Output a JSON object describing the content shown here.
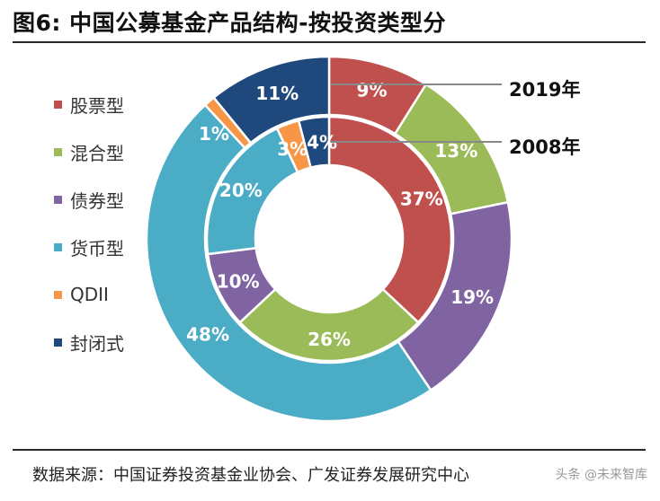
{
  "figure": {
    "title": "图6:  中国公募基金产品结构-按投资类型分",
    "source": "数据来源：中国证券投资基金业协会、广发证券发展研究中心",
    "watermark": "头条 @未来智库"
  },
  "colors": {
    "stock": "#c0504d",
    "mixed": "#9bbb59",
    "bond": "#8064a2",
    "money": "#4bacc6",
    "qdii": "#f79646",
    "closed": "#1f497d"
  },
  "chart_data": {
    "type": "donut",
    "title": "中国公募基金产品结构-按投资类型分",
    "categories": [
      "股票型",
      "混合型",
      "债券型",
      "货币型",
      "QDII",
      "封闭式"
    ],
    "series": [
      {
        "name": "2019年",
        "ring": "outer",
        "values": [
          9,
          13,
          19,
          48,
          1,
          11
        ],
        "labels": [
          "9%",
          "13%",
          "19%",
          "48%",
          "",
          "11%"
        ],
        "outside_label": "1%"
      },
      {
        "name": "2008年",
        "ring": "inner",
        "values": [
          37,
          26,
          10,
          20,
          3,
          4
        ],
        "labels": [
          "37%",
          "26%",
          "10%",
          "20%",
          "3%",
          "4%"
        ]
      }
    ],
    "legend": "left",
    "annotations": [
      "2019年",
      "2008年"
    ]
  }
}
